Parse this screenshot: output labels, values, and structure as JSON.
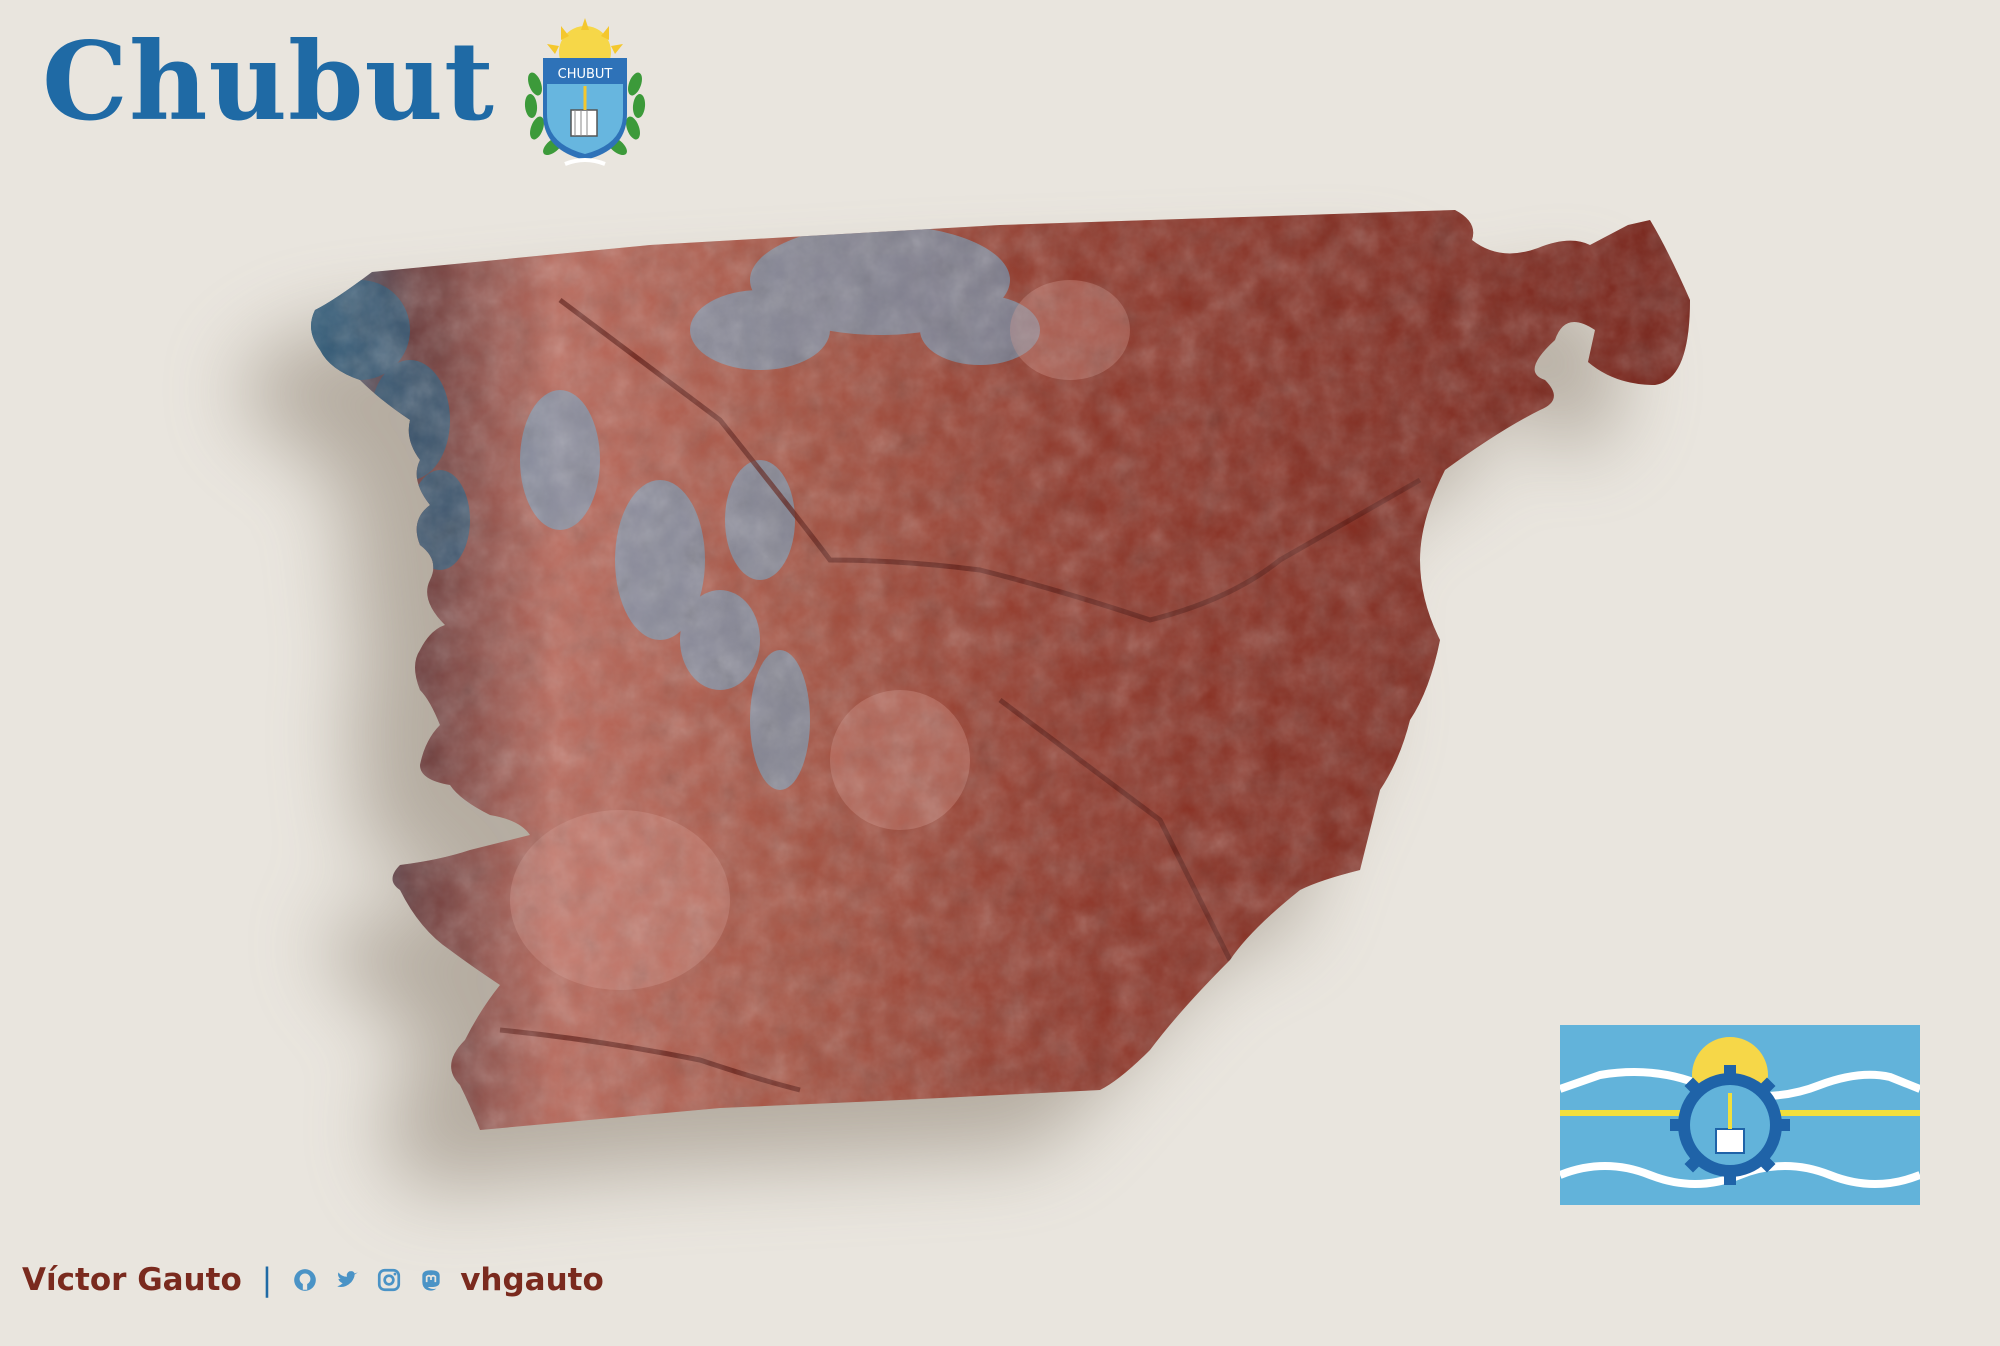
{
  "header": {
    "title": "Chubut"
  },
  "coat_of_arms": {
    "label": "CHUBUT",
    "icon": "coat-of-arms-icon"
  },
  "map": {
    "region": "Chubut",
    "style": "shaded-relief",
    "colors": {
      "lowland": "#7d2418",
      "midland": "#b05a48",
      "highland": "#5fa6cf",
      "background": "#e9e5de"
    }
  },
  "flag": {
    "icon": "chubut-flag-icon",
    "colors": {
      "sky": "#62b3da",
      "white": "#ffffff",
      "yellow": "#f2df3c",
      "blue": "#1f63a8"
    }
  },
  "footer": {
    "author": "Víctor Gauto",
    "separator": "|",
    "handle": "vhgauto",
    "icons": [
      "github-icon",
      "twitter-icon",
      "instagram-icon",
      "mastodon-icon"
    ],
    "colors": {
      "text": "#7a2a1e",
      "icon": "#4a93c6"
    }
  }
}
